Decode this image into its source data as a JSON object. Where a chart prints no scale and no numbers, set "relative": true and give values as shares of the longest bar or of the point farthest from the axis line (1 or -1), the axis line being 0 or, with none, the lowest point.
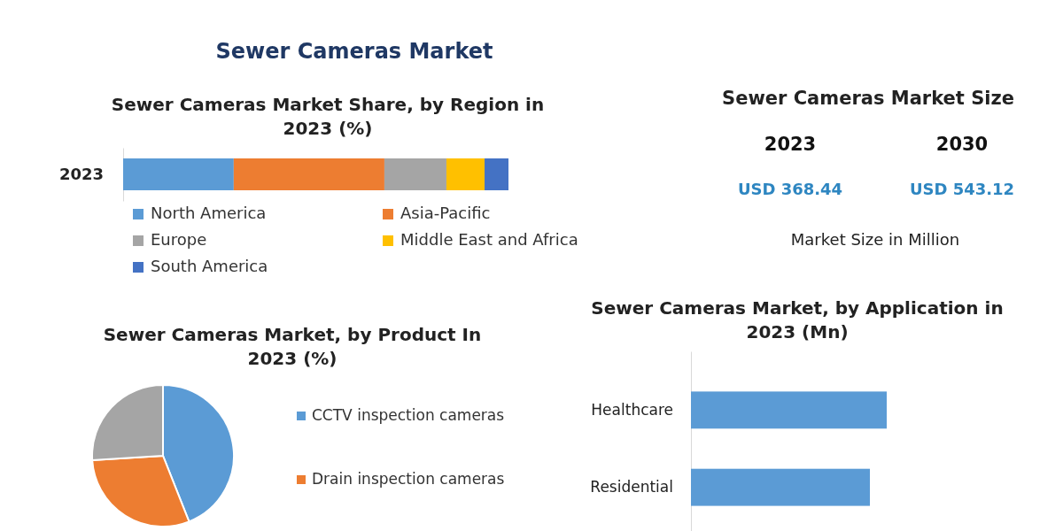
{
  "chart_data": [
    {
      "type": "other",
      "title": "Sewer Cameras Market"
    },
    {
      "type": "bar",
      "title": "Sewer Cameras Market Share, by Region in 2023 (%)",
      "categories": [
        "2023"
      ],
      "orientation": "horizontal",
      "stacked": true,
      "relative": true,
      "legend": "bottom",
      "series": [
        {
          "name": "North America",
          "color": "#5b9bd5",
          "values": [
            0.287
          ]
        },
        {
          "name": "Asia-Pacific",
          "color": "#ed7d31",
          "values": [
            0.391
          ]
        },
        {
          "name": "Europe",
          "color": "#a5a5a5",
          "values": [
            0.161
          ]
        },
        {
          "name": "Middle East and Africa",
          "color": "#ffc000",
          "values": [
            0.099
          ]
        },
        {
          "name": "South America",
          "color": "#4472c4",
          "values": [
            0.062
          ]
        }
      ]
    },
    {
      "type": "other",
      "title": "Sewer Cameras Market Size",
      "annotations": [
        "2023",
        "2030",
        "USD 368.44",
        "USD 543.12",
        "Market Size in Million"
      ]
    },
    {
      "type": "pie",
      "title": "Sewer Cameras Market, by Product In 2023 (%)",
      "categories": [
        "CCTV inspection cameras",
        "Drain inspection cameras",
        null
      ],
      "values": [
        44,
        30,
        26
      ],
      "colors": [
        "#5b9bd5",
        "#ed7d31",
        "#a5a5a5"
      ],
      "legend": "right"
    },
    {
      "type": "bar",
      "title": "Sewer Cameras Market, by Application in 2023 (Mn)",
      "categories": [
        "Healthcare",
        "Residential"
      ],
      "orientation": "horizontal",
      "relative": true,
      "values": [
        1,
        0.914
      ],
      "color": "#5b9bd5"
    }
  ]
}
